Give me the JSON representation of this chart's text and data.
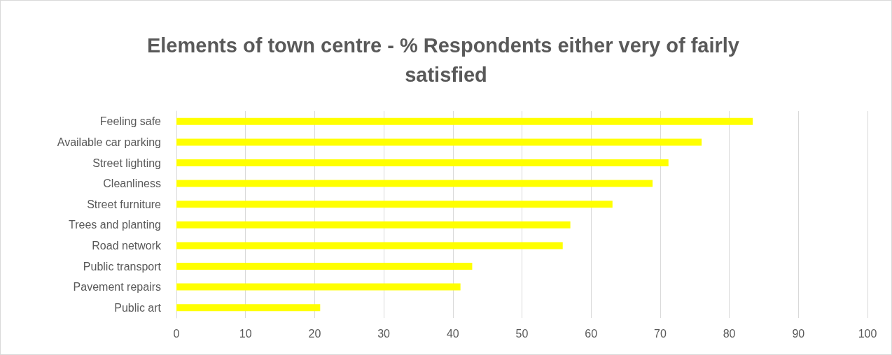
{
  "chart_data": {
    "type": "bar",
    "orientation": "horizontal",
    "title": "Elements of town centre - % Respondents either very of fairly satisfied",
    "categories": [
      "Feeling safe",
      "Available car parking",
      "Street lighting",
      "Cleanliness",
      "Street furniture",
      "Trees and planting",
      "Road network",
      "Public transport",
      "Pavement repairs",
      "Public art"
    ],
    "values": [
      83.4,
      76.0,
      71.2,
      68.9,
      63.1,
      57.0,
      55.9,
      42.8,
      41.1,
      20.8
    ],
    "color": "#ffff00",
    "xlim": [
      0,
      100
    ],
    "xticks": [
      0,
      10,
      20,
      30,
      40,
      50,
      60,
      70,
      80,
      90,
      100
    ],
    "grid": "x"
  }
}
